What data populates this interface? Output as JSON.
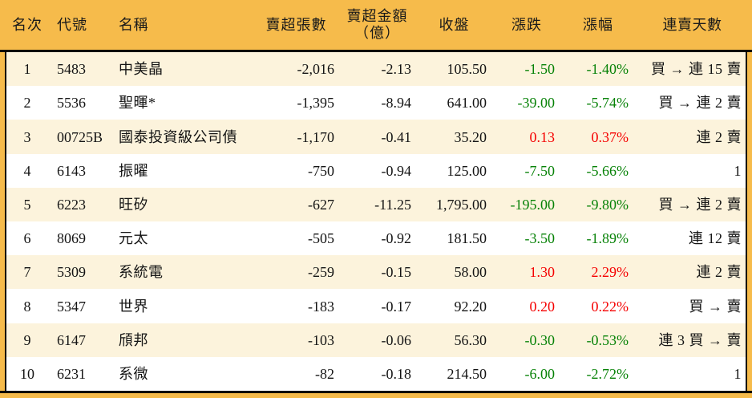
{
  "colors": {
    "frame": "#F6BB4B",
    "stripe": "#FCF3DC",
    "line": "#000000",
    "up_red": "#F50000",
    "down_green": "#078207"
  },
  "table": {
    "headers": {
      "rank": "名次",
      "code": "代號",
      "name": "名稱",
      "lots": "賣超張數",
      "amount_line1": "賣超金額",
      "amount_line2": "（億）",
      "close": "收盤",
      "change": "漲跌",
      "pct": "漲幅",
      "streak": "連賣天數"
    },
    "rows": [
      {
        "rank": "1",
        "code": "5483",
        "name": "中美晶",
        "lots": "-2,016",
        "amount": "-2.13",
        "close": "105.50",
        "change": "-1.50",
        "pct": "-1.40%",
        "streak": "買 → 連 15 賣"
      },
      {
        "rank": "2",
        "code": "5536",
        "name": "聖暉*",
        "lots": "-1,395",
        "amount": "-8.94",
        "close": "641.00",
        "change": "-39.00",
        "pct": "-5.74%",
        "streak": "買 → 連 2 賣"
      },
      {
        "rank": "3",
        "code": "00725B",
        "name": "國泰投資級公司債",
        "lots": "-1,170",
        "amount": "-0.41",
        "close": "35.20",
        "change": "0.13",
        "pct": "0.37%",
        "streak": "連 2 賣"
      },
      {
        "rank": "4",
        "code": "6143",
        "name": "振曜",
        "lots": "-750",
        "amount": "-0.94",
        "close": "125.00",
        "change": "-7.50",
        "pct": "-5.66%",
        "streak": "1"
      },
      {
        "rank": "5",
        "code": "6223",
        "name": "旺矽",
        "lots": "-627",
        "amount": "-11.25",
        "close": "1,795.00",
        "change": "-195.00",
        "pct": "-9.80%",
        "streak": "買 → 連 2 賣"
      },
      {
        "rank": "6",
        "code": "8069",
        "name": "元太",
        "lots": "-505",
        "amount": "-0.92",
        "close": "181.50",
        "change": "-3.50",
        "pct": "-1.89%",
        "streak": "連 12 賣"
      },
      {
        "rank": "7",
        "code": "5309",
        "name": "系統電",
        "lots": "-259",
        "amount": "-0.15",
        "close": "58.00",
        "change": "1.30",
        "pct": "2.29%",
        "streak": "連 2 賣"
      },
      {
        "rank": "8",
        "code": "5347",
        "name": "世界",
        "lots": "-183",
        "amount": "-0.17",
        "close": "92.20",
        "change": "0.20",
        "pct": "0.22%",
        "streak": "買 → 賣"
      },
      {
        "rank": "9",
        "code": "6147",
        "name": "頎邦",
        "lots": "-103",
        "amount": "-0.06",
        "close": "56.30",
        "change": "-0.30",
        "pct": "-0.53%",
        "streak": "連 3 買 → 賣"
      },
      {
        "rank": "10",
        "code": "6231",
        "name": "系微",
        "lots": "-82",
        "amount": "-0.18",
        "close": "214.50",
        "change": "-6.00",
        "pct": "-2.72%",
        "streak": "1"
      }
    ]
  },
  "chart_data": {
    "type": "table",
    "columns": [
      "名次",
      "代號",
      "名稱",
      "賣超張數",
      "賣超金額(億)",
      "收盤",
      "漲跌",
      "漲幅",
      "連賣天數"
    ],
    "rows": [
      [
        1,
        "5483",
        "中美晶",
        -2016,
        -2.13,
        105.5,
        -1.5,
        "-1.40%",
        "買 → 連 15 賣"
      ],
      [
        2,
        "5536",
        "聖暉*",
        -1395,
        -8.94,
        641.0,
        -39.0,
        "-5.74%",
        "買 → 連 2 賣"
      ],
      [
        3,
        "00725B",
        "國泰投資級公司債",
        -1170,
        -0.41,
        35.2,
        0.13,
        "0.37%",
        "連 2 賣"
      ],
      [
        4,
        "6143",
        "振曜",
        -750,
        -0.94,
        125.0,
        -7.5,
        "-5.66%",
        "1"
      ],
      [
        5,
        "6223",
        "旺矽",
        -627,
        -11.25,
        1795.0,
        -195.0,
        "-9.80%",
        "買 → 連 2 賣"
      ],
      [
        6,
        "8069",
        "元太",
        -505,
        -0.92,
        181.5,
        -3.5,
        "-1.89%",
        "連 12 賣"
      ],
      [
        7,
        "5309",
        "系統電",
        -259,
        -0.15,
        58.0,
        1.3,
        "2.29%",
        "連 2 賣"
      ],
      [
        8,
        "5347",
        "世界",
        -183,
        -0.17,
        92.2,
        0.2,
        "0.22%",
        "買 → 賣"
      ],
      [
        9,
        "6147",
        "頎邦",
        -103,
        -0.06,
        56.3,
        -0.3,
        "-0.53%",
        "連 3 買 → 賣"
      ],
      [
        10,
        "6231",
        "系微",
        -82,
        -0.18,
        214.5,
        -6.0,
        "-2.72%",
        "1"
      ]
    ],
    "notes": "color convention: red = price up, green = price down; stripes alternate cream/white"
  }
}
